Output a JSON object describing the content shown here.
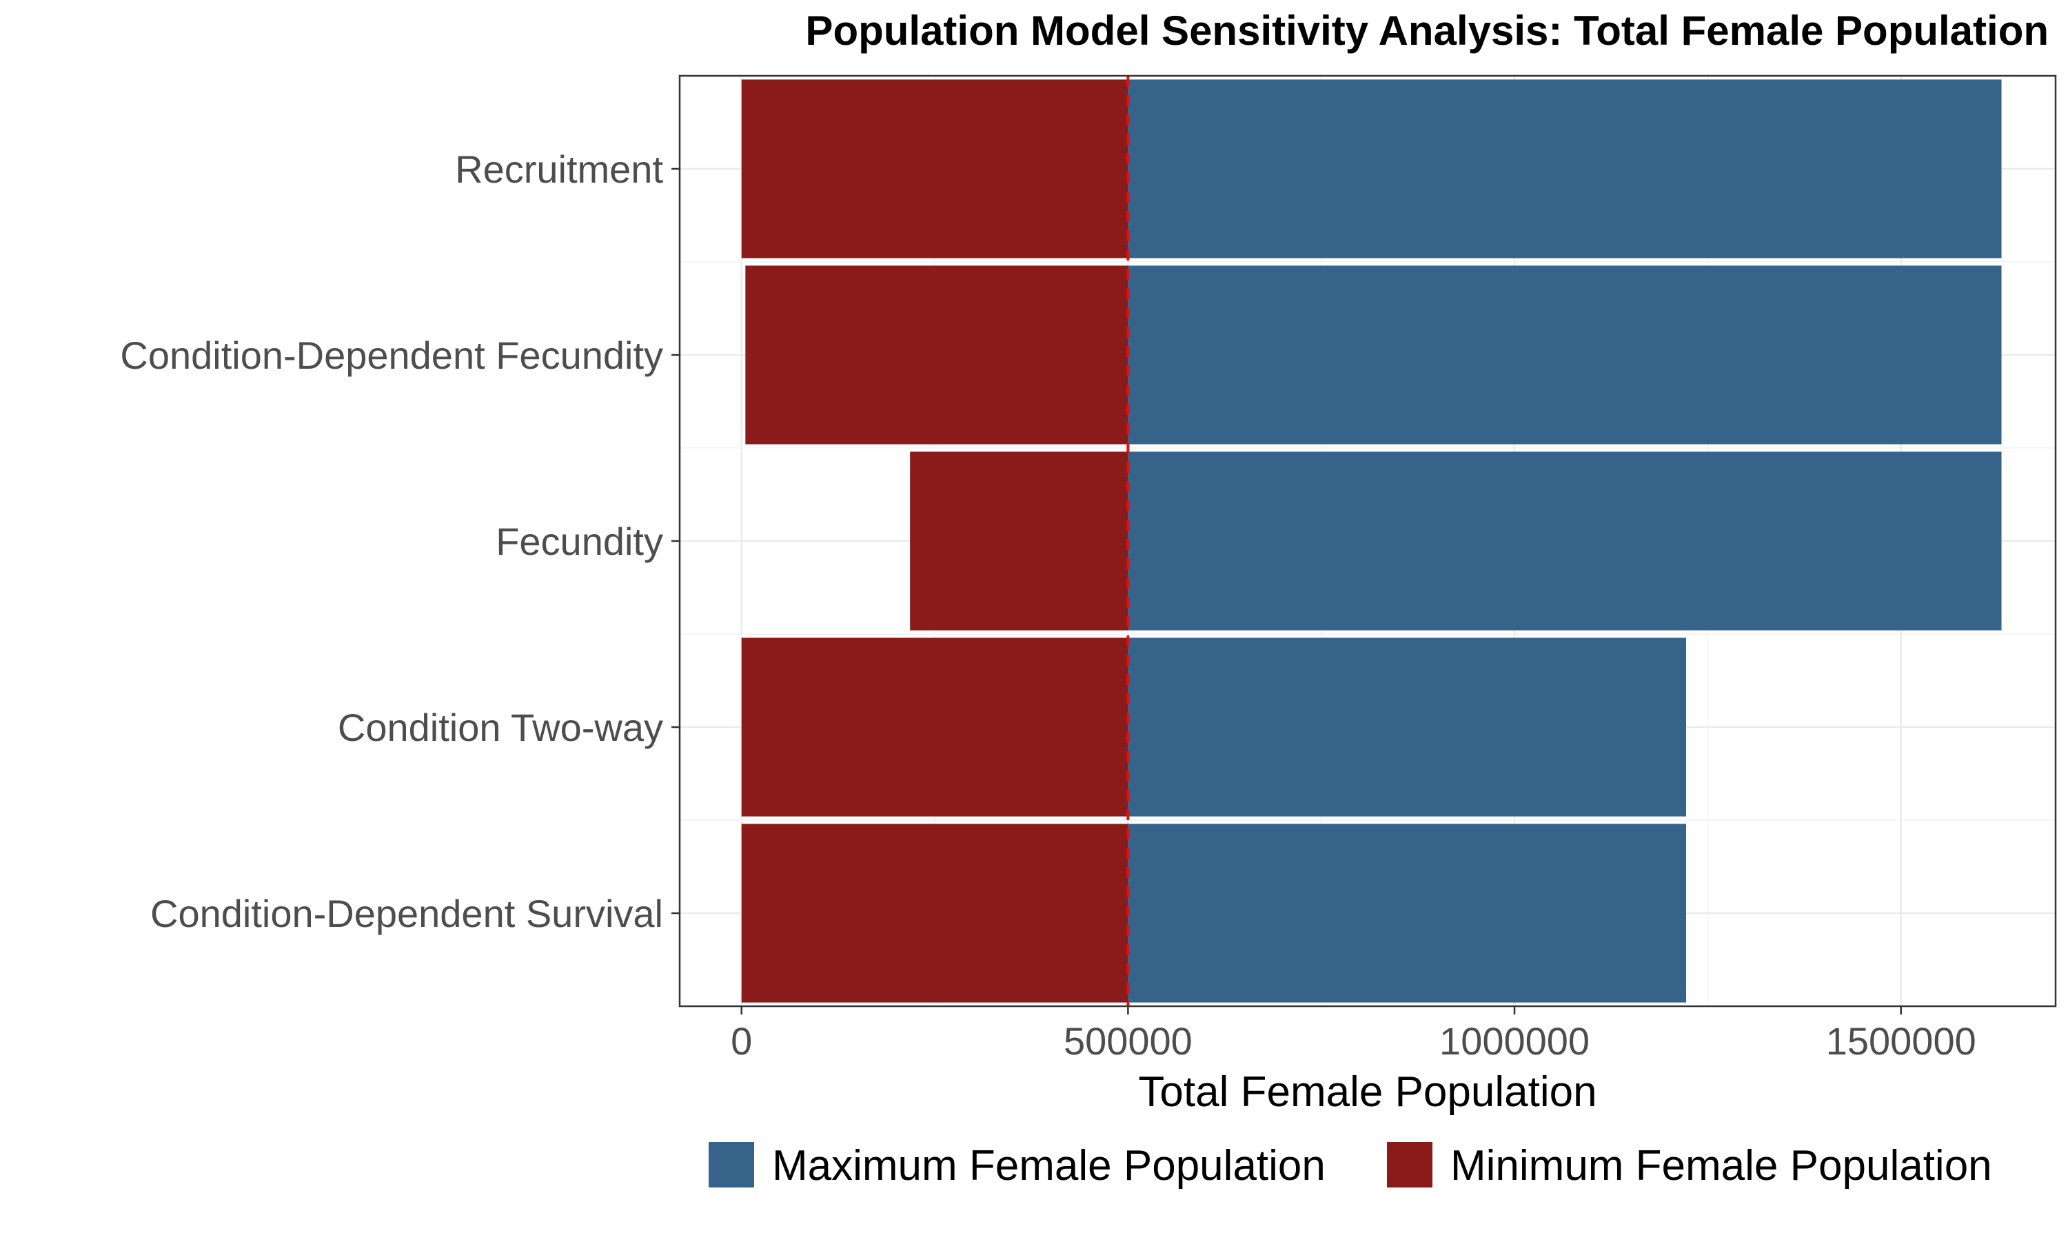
{
  "chart_data": {
    "type": "bar",
    "orientation": "horizontal",
    "title": "Population Model Sensitivity Analysis: Total Female Population",
    "xlabel": "Total Female Population",
    "ylabel": "",
    "categories": [
      "Recruitment",
      "Condition-Dependent Fecundity",
      "Fecundity",
      "Condition Two-way",
      "Condition-Dependent Survival"
    ],
    "baseline": 500000,
    "series": [
      {
        "name": "Maximum Female Population",
        "color": "#366389",
        "values": [
          1630000,
          1630000,
          1630000,
          1222000,
          1222000
        ]
      },
      {
        "name": "Minimum Female Population",
        "color": "#8b1a1a",
        "values": [
          0,
          5000,
          218000,
          0,
          0
        ]
      }
    ],
    "xlim": [
      -80000,
      1700000
    ],
    "xticks": [
      0,
      500000,
      1000000,
      1500000
    ],
    "xtick_labels": [
      "0",
      "500000",
      "1000000",
      "1500000"
    ],
    "reference_line": {
      "value": 500000,
      "color": "#dd1111",
      "style": "dashed"
    },
    "grid": true,
    "legend_position": "bottom"
  }
}
